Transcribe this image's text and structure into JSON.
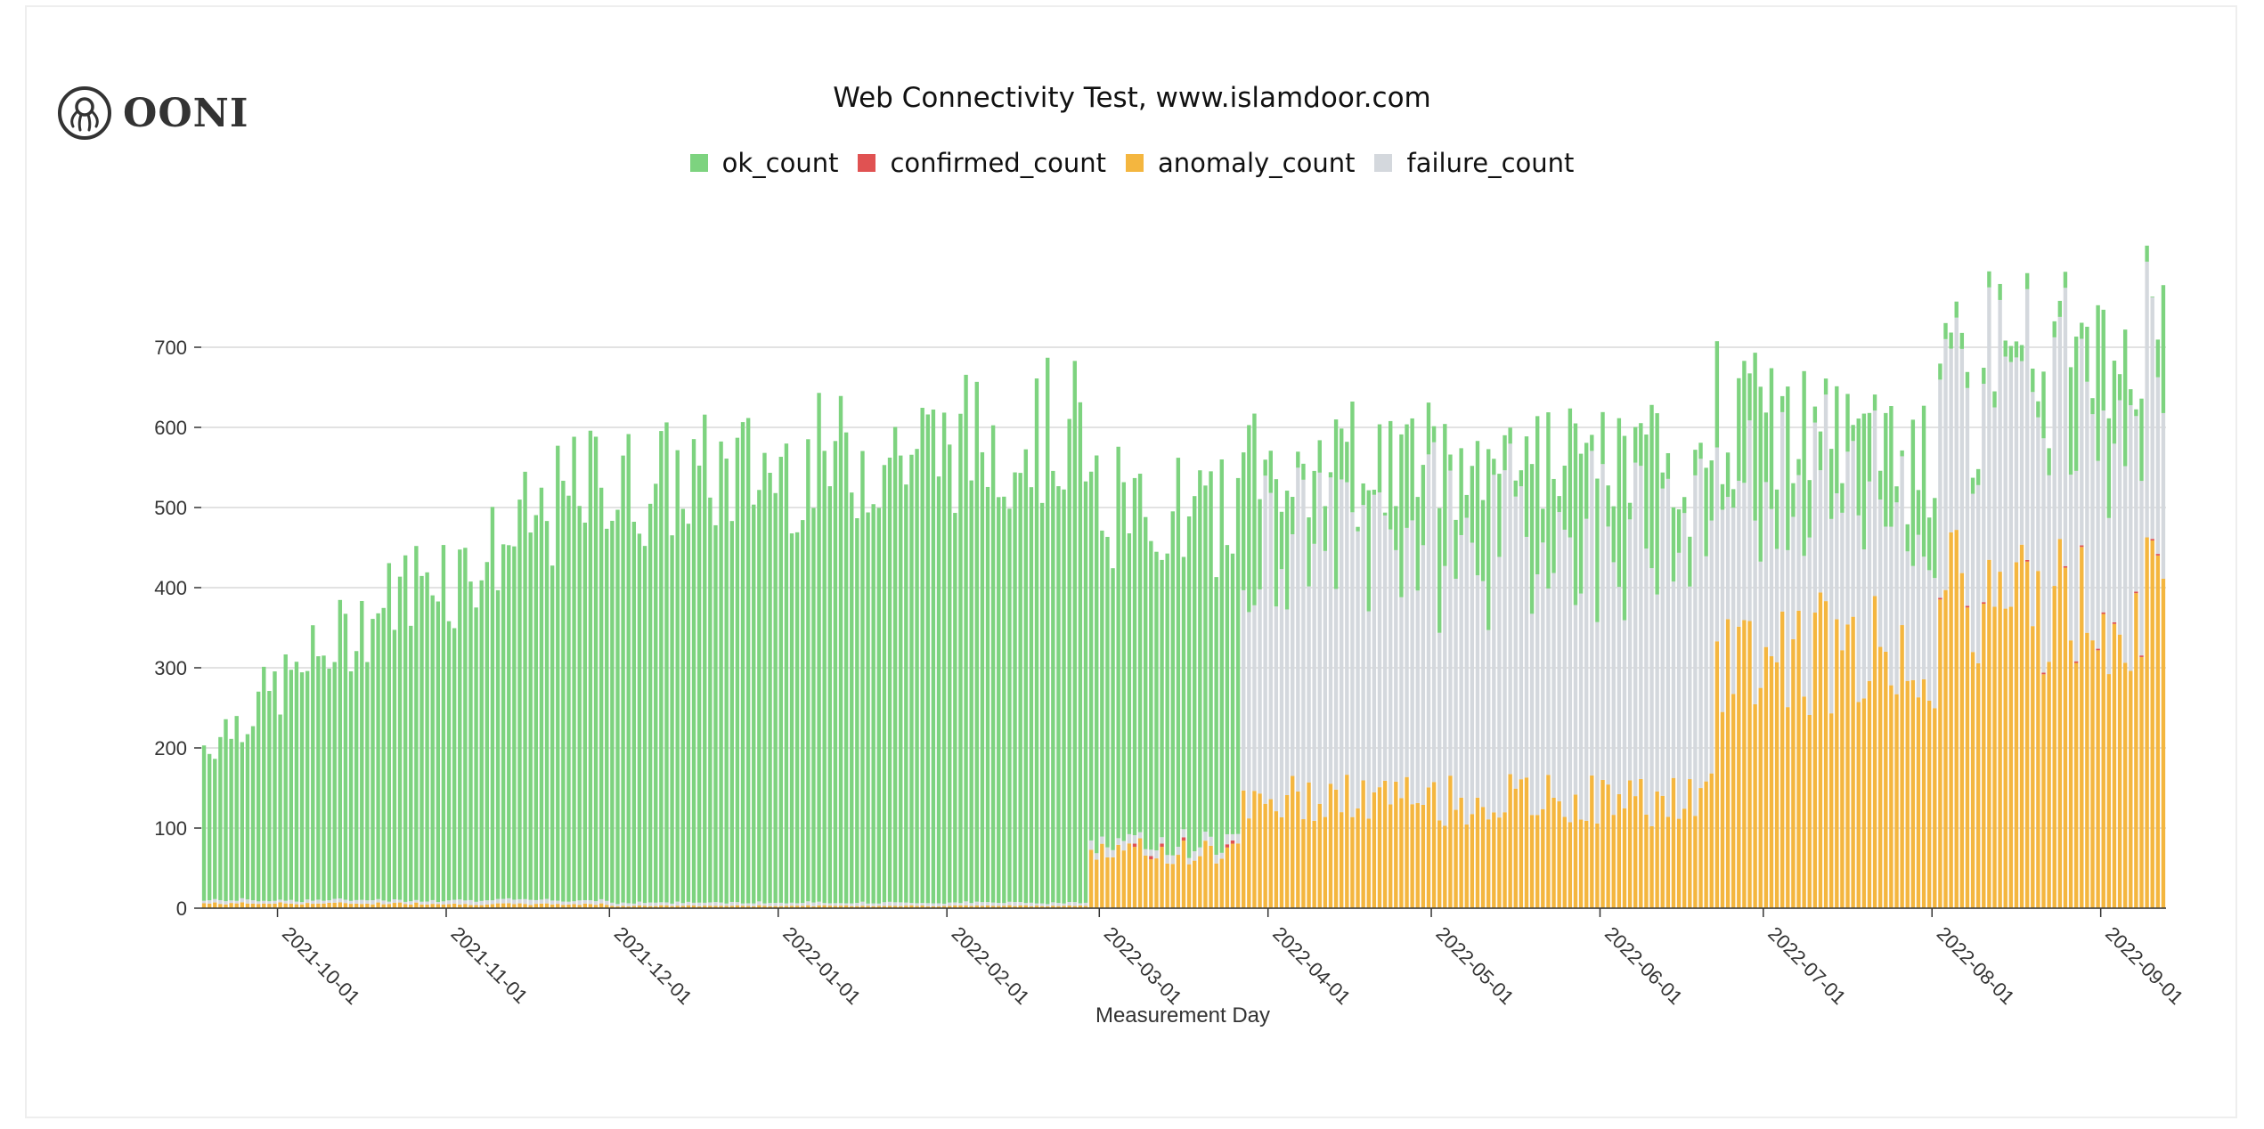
{
  "logo": {
    "text": "OONI"
  },
  "chart_data": {
    "type": "bar",
    "stacked": true,
    "title": "Web Connectivity Test, www.islamdoor.com",
    "xlabel": "Measurement Day",
    "ylabel": "",
    "ylim": [
      0,
      800
    ],
    "yticks": [
      0,
      100,
      200,
      300,
      400,
      500,
      600,
      700
    ],
    "grid": true,
    "legend_position": "top-center",
    "x_start": "2021-09-17",
    "x_end": "2022-09-12",
    "xticks": [
      "2021-10-01",
      "2021-11-01",
      "2021-12-01",
      "2022-01-01",
      "2022-02-01",
      "2022-03-01",
      "2022-04-01",
      "2022-05-01",
      "2022-06-01",
      "2022-07-01",
      "2022-08-01",
      "2022-09-01"
    ],
    "series": [
      {
        "name": "ok_count",
        "color": "#7dd37f"
      },
      {
        "name": "confirmed_count",
        "color": "#e05252"
      },
      {
        "name": "anomaly_count",
        "color": "#f4b63f"
      },
      {
        "name": "failure_count",
        "color": "#d4d8dd"
      }
    ],
    "phases": [
      {
        "from": "2021-09-17",
        "to": "2021-10-31",
        "total_from": 210,
        "total_to": 450,
        "anomaly": 6,
        "failure": 4,
        "confirmed": 0
      },
      {
        "from": "2021-11-01",
        "to": "2021-11-30",
        "total_from": 420,
        "total_to": 560,
        "anomaly": 5,
        "failure": 5,
        "confirmed": 0
      },
      {
        "from": "2021-12-01",
        "to": "2022-02-26",
        "total_from": 540,
        "total_to": 620,
        "anomaly": 3,
        "failure": 4,
        "confirmed": 0
      },
      {
        "from": "2022-02-27",
        "to": "2022-03-26",
        "total_from": 520,
        "total_to": 500,
        "anomaly": 70,
        "failure": 10,
        "confirmed": 4
      },
      {
        "from": "2022-03-27",
        "to": "2022-06-21",
        "total_from": 580,
        "total_to": 560,
        "anomaly": 135,
        "failure": 330,
        "confirmed": 0
      },
      {
        "from": "2022-06-22",
        "to": "2022-08-01",
        "total_from": 640,
        "total_to": 560,
        "anomaly": 320,
        "failure": 200,
        "confirmed": 0
      },
      {
        "from": "2022-08-02",
        "to": "2022-09-12",
        "total_from": 560,
        "total_to": 740,
        "anomaly": 380,
        "failure": 270,
        "confirmed": 2
      }
    ]
  }
}
